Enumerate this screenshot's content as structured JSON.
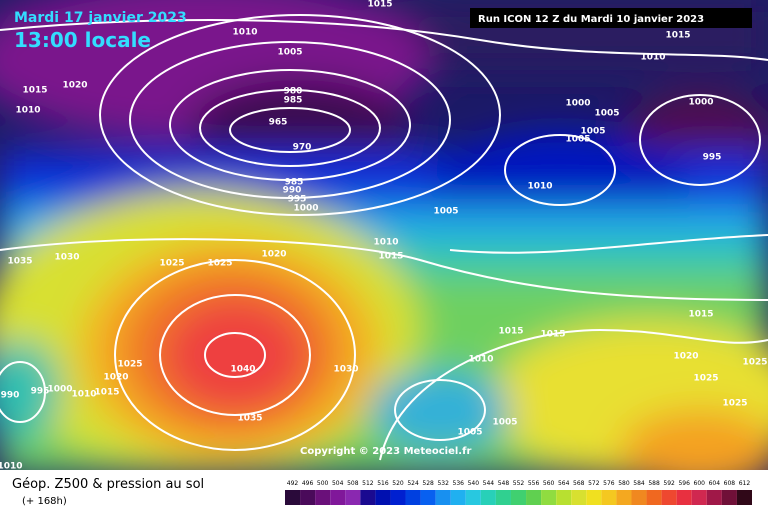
{
  "header": {
    "date": "Mardi 17 janvier 2023",
    "time": "13:00 locale",
    "run": "Run ICON 12 Z du Mardi 10 janvier 2023"
  },
  "isobar_labels": [
    1015,
    1010,
    1005,
    1020,
    1015,
    1010,
    980,
    985,
    965,
    970,
    985,
    990,
    995,
    1000,
    1005,
    1010,
    1015,
    1020,
    1025,
    1025,
    1030,
    1035,
    1040,
    1035,
    1030,
    1025,
    1020,
    1015,
    1010,
    1000,
    995,
    990,
    1010,
    1015,
    1015,
    1010,
    1005,
    1005,
    1015,
    1020,
    1025,
    1025,
    1025,
    1010,
    1000,
    1005,
    1005,
    1005,
    1000,
    995,
    1010,
    1015
  ],
  "copyright": "Copyright © 2023 Meteociel.fr",
  "legend": {
    "title": "Géop. Z500 & pression au sol",
    "subtitle": "(+ 168h)",
    "scale": [
      492,
      496,
      500,
      504,
      508,
      512,
      516,
      520,
      524,
      528,
      532,
      536,
      540,
      544,
      548,
      552,
      556,
      560,
      564,
      568,
      572,
      576,
      580,
      584,
      588,
      592,
      596,
      600,
      604,
      608,
      612
    ]
  }
}
